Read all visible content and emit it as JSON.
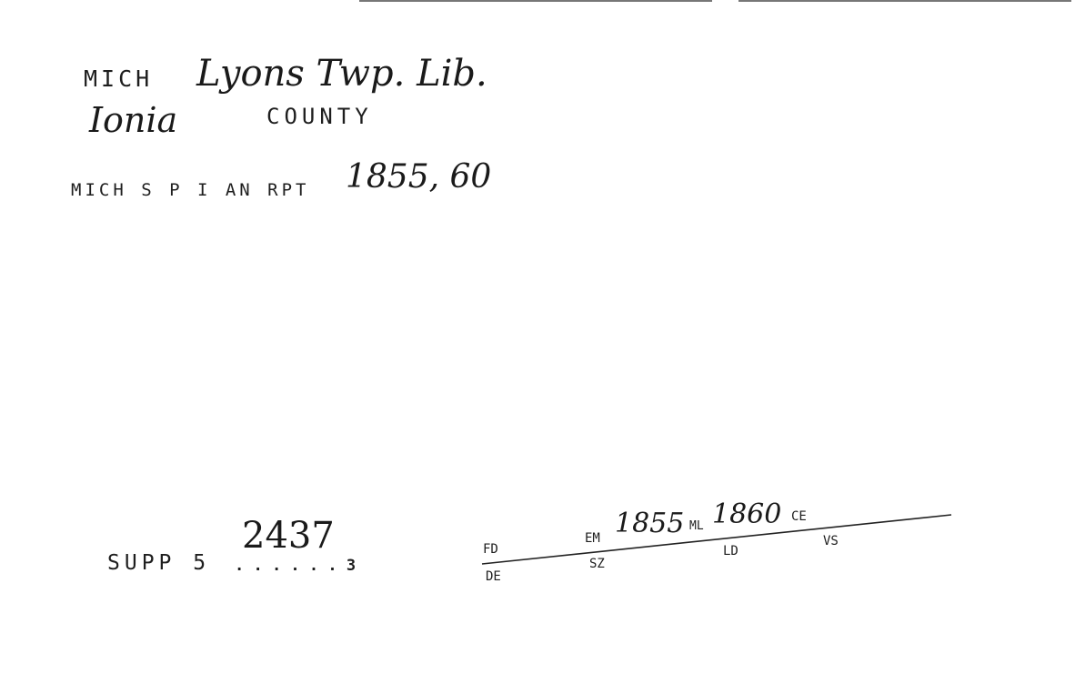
{
  "card": {
    "line1_state": "MICH",
    "line1_place": "Lyons Twp. Lib.",
    "line2_county_name": "Ionia",
    "line2_county_word": "COUNTY",
    "line3_source": "MICH S P I AN RPT",
    "line3_years": "1855, 60",
    "supp_label": "SUPP 5",
    "supp_number": "2437",
    "supp_dots": ". . . . . . 3"
  },
  "codes": {
    "fd": "FD",
    "de": "DE",
    "em": "EM",
    "em_value": "1855",
    "ml": "ML",
    "ml_value": "1860",
    "ce": "CE",
    "sz": "SZ",
    "ld": "LD",
    "vs": "VS"
  }
}
